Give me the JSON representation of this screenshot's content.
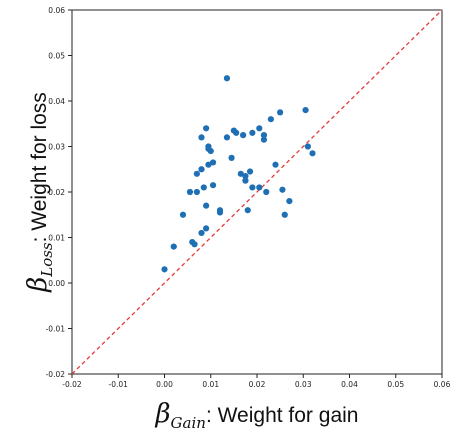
{
  "chart_data": {
    "type": "scatter",
    "title": "",
    "xlabel": {
      "symbol": "β",
      "subscript": "Gain",
      "text": ": Weight for gain"
    },
    "ylabel": {
      "symbol": "β",
      "subscript": "Loss",
      "text": ": Weight for loss"
    },
    "xlim": [
      -0.02,
      0.06
    ],
    "ylim": [
      -0.02,
      0.06
    ],
    "x_ticks": [
      "-0.02",
      "-0.01",
      "0.00",
      "0.01",
      "0.02",
      "0.03",
      "0.04",
      "0.05",
      "0.06"
    ],
    "y_ticks": [
      "-0.02",
      "-0.01",
      "0.00",
      "0.01",
      "0.02",
      "0.03",
      "0.04",
      "0.05",
      "0.06"
    ],
    "grid": false,
    "legend": "none",
    "reference_line": {
      "from": [
        -0.02,
        -0.02
      ],
      "to": [
        0.06,
        0.06
      ],
      "style": "dashed",
      "color": "#e8393a"
    },
    "point_color": "#1f6fb4",
    "points": [
      [
        0.0,
        0.003
      ],
      [
        0.002,
        0.008
      ],
      [
        0.004,
        0.015
      ],
      [
        0.006,
        0.009
      ],
      [
        0.0065,
        0.0085
      ],
      [
        0.0055,
        0.02
      ],
      [
        0.007,
        0.02
      ],
      [
        0.007,
        0.024
      ],
      [
        0.008,
        0.011
      ],
      [
        0.0085,
        0.021
      ],
      [
        0.009,
        0.012
      ],
      [
        0.009,
        0.017
      ],
      [
        0.008,
        0.025
      ],
      [
        0.0095,
        0.026
      ],
      [
        0.0105,
        0.0265
      ],
      [
        0.0105,
        0.0215
      ],
      [
        0.008,
        0.032
      ],
      [
        0.009,
        0.034
      ],
      [
        0.0095,
        0.03
      ],
      [
        0.01,
        0.029
      ],
      [
        0.0095,
        0.0295
      ],
      [
        0.012,
        0.016
      ],
      [
        0.012,
        0.0155
      ],
      [
        0.0135,
        0.045
      ],
      [
        0.0135,
        0.032
      ],
      [
        0.015,
        0.0335
      ],
      [
        0.0145,
        0.0275
      ],
      [
        0.0155,
        0.033
      ],
      [
        0.017,
        0.0325
      ],
      [
        0.0165,
        0.024
      ],
      [
        0.0175,
        0.0225
      ],
      [
        0.0175,
        0.0235
      ],
      [
        0.0185,
        0.0245
      ],
      [
        0.018,
        0.016
      ],
      [
        0.019,
        0.021
      ],
      [
        0.019,
        0.033
      ],
      [
        0.0205,
        0.034
      ],
      [
        0.0205,
        0.021
      ],
      [
        0.0215,
        0.0325
      ],
      [
        0.0215,
        0.0315
      ],
      [
        0.022,
        0.02
      ],
      [
        0.023,
        0.036
      ],
      [
        0.024,
        0.026
      ],
      [
        0.025,
        0.0375
      ],
      [
        0.0255,
        0.0205
      ],
      [
        0.026,
        0.015
      ],
      [
        0.027,
        0.018
      ],
      [
        0.0305,
        0.038
      ],
      [
        0.031,
        0.03
      ],
      [
        0.032,
        0.0285
      ]
    ]
  }
}
